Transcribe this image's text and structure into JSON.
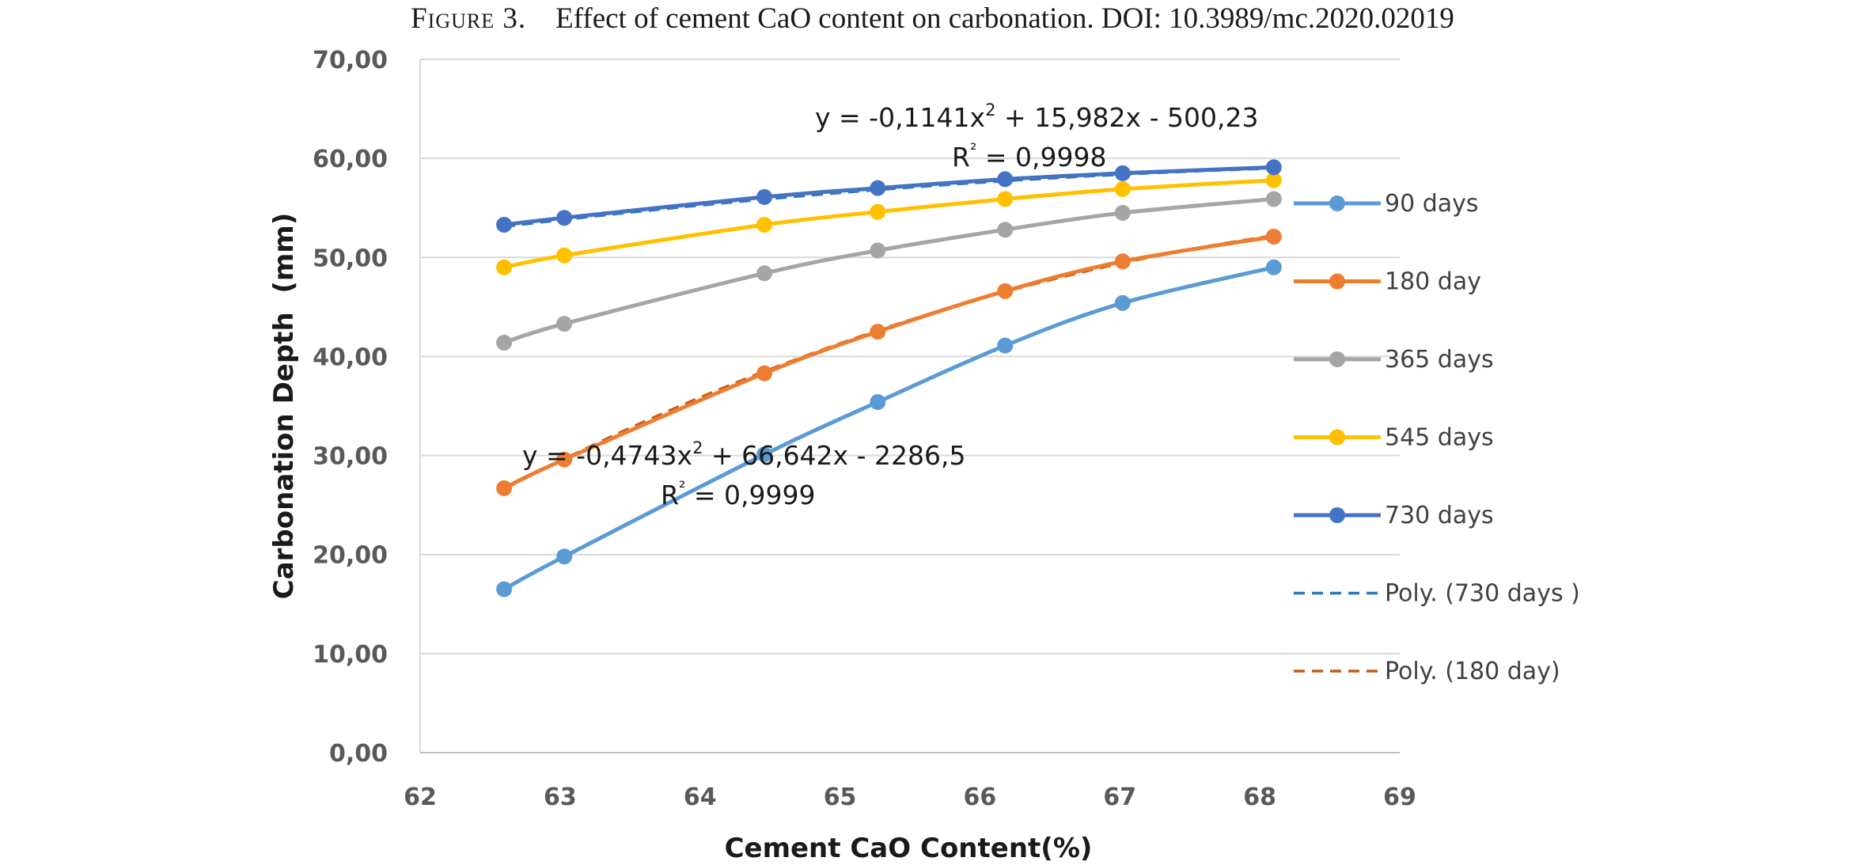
{
  "caption": {
    "label": "Figure 3.",
    "text": "Effect of cement CaO content on carbonation. DOI: 10.3989/mc.2020.02019"
  },
  "chart_data": {
    "type": "line",
    "title": "",
    "xlabel": "Cement CaO Content(%)",
    "ylabel": "Carbonation Depth  (mm)",
    "xlim": [
      62,
      69
    ],
    "ylim": [
      0,
      70
    ],
    "x_ticks": [
      "62",
      "63",
      "64",
      "65",
      "66",
      "67",
      "68",
      "69"
    ],
    "y_ticks": [
      "0,00",
      "10,00",
      "20,00",
      "30,00",
      "40,00",
      "50,00",
      "60,00",
      "70,00"
    ],
    "grid": "horizontal",
    "legend_position": "right",
    "x": [
      62.6,
      63.03,
      64.46,
      65.27,
      66.18,
      67.02,
      68.1
    ],
    "series": [
      {
        "name": "90 days",
        "color": "#5b9bd5",
        "values": [
          16.5,
          19.8,
          30.1,
          35.4,
          41.1,
          45.4,
          49.0
        ]
      },
      {
        "name": "180 day",
        "color": "#ed7d31",
        "values": [
          26.7,
          29.6,
          38.3,
          42.5,
          46.6,
          49.6,
          52.1
        ]
      },
      {
        "name": "365 days",
        "color": "#a5a5a5",
        "values": [
          41.4,
          43.3,
          48.4,
          50.7,
          52.8,
          54.5,
          55.9
        ]
      },
      {
        "name": "545 days",
        "color": "#ffc000",
        "values": [
          49.0,
          50.2,
          53.3,
          54.6,
          55.9,
          56.9,
          57.8
        ]
      },
      {
        "name": "730 days",
        "color": "#4472c4",
        "values": [
          53.3,
          54.0,
          56.1,
          57.0,
          57.9,
          58.5,
          59.1
        ]
      }
    ],
    "trendlines": [
      {
        "name": "Poly. (730 days )",
        "color": "#2e75b6",
        "style": "dashed",
        "coefficients": [
          -0.1141,
          15.982,
          -500.23
        ]
      },
      {
        "name": "Poly. (180 day)",
        "color": "#c55a11",
        "style": "dashed",
        "coefficients": [
          -0.4743,
          66.642,
          -2286.5
        ]
      }
    ],
    "annotations": {
      "eq730": {
        "pre": "y = -0,1141x",
        "sup": "2",
        "post": " + 15,982x - 500,23",
        "r2_pre": "R",
        "r2_sup": "²",
        "r2_post": " = 0,9998"
      },
      "eq180": {
        "pre": "y = -0,4743x",
        "sup": "2",
        "post": " + 66,642x - 2286,5",
        "r2_pre": "R",
        "r2_sup": "²",
        "r2_post": " = 0,9999"
      }
    }
  }
}
